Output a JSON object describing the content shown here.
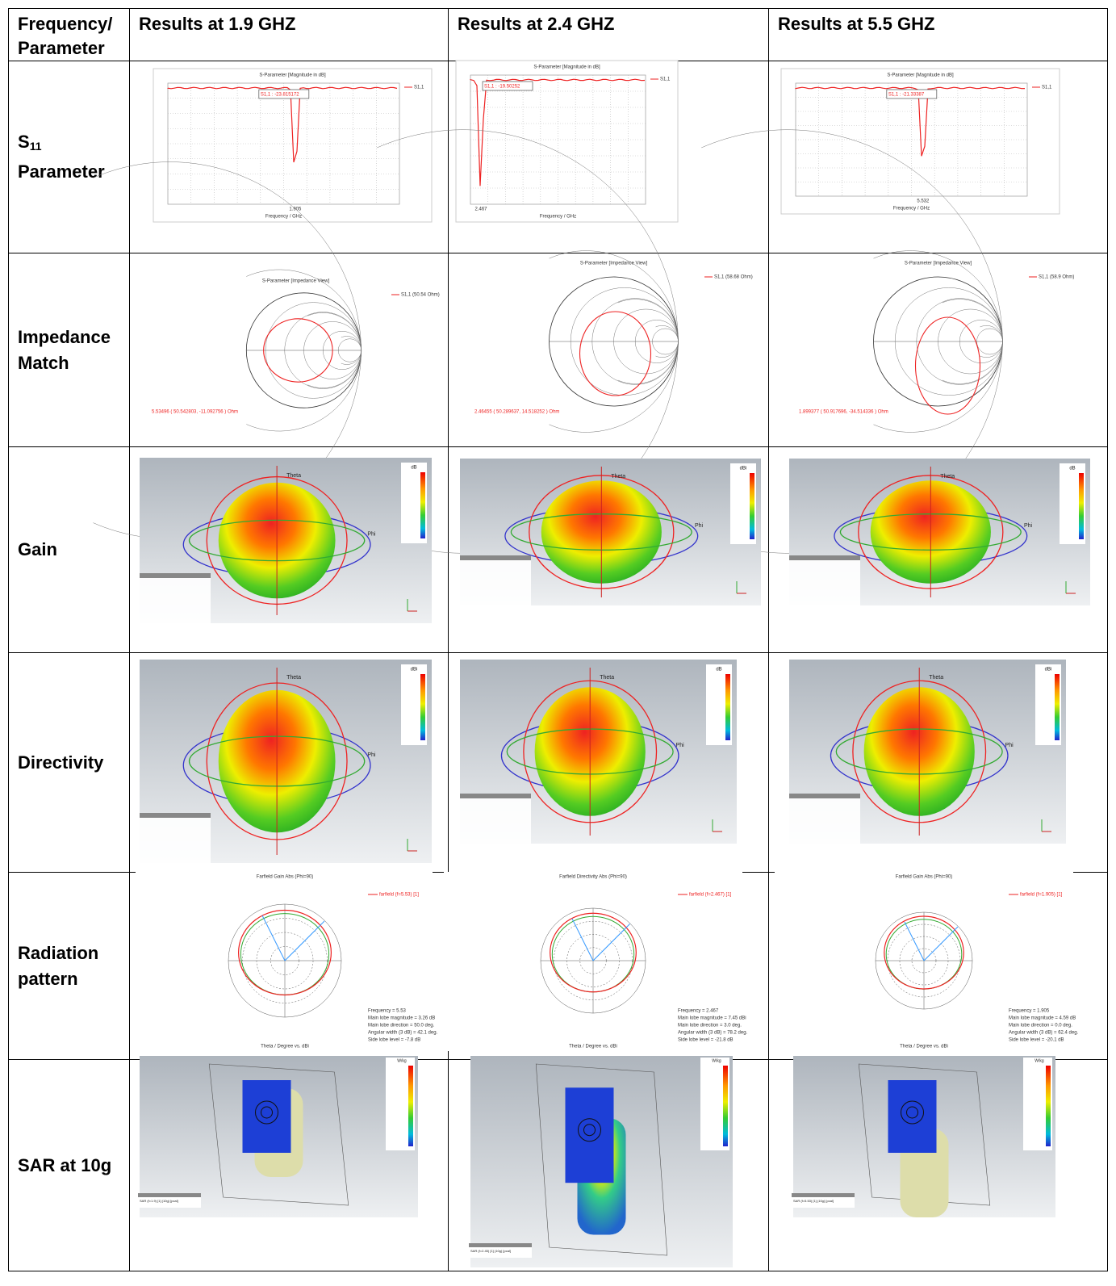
{
  "table": {
    "header": [
      "Frequency/ Parameter",
      "Results at 1.9 GHZ",
      "Results at 2.4 GHZ",
      "Results at 5.5 GHZ"
    ],
    "rows": [
      {
        "label": {
          "symbol": "S",
          "subscript": "11",
          "text": "Parameter"
        },
        "kind": "s11",
        "figures": [
          {
            "title": "S-Parameter [Magnitude in dB]",
            "marker": "S1,1 : -23.815172",
            "legend": "S1,1",
            "x_marker": "1.905",
            "x_label": "Frequency / GHz"
          },
          {
            "title": "S-Parameter [Magnitude in dB]",
            "marker": "S1,1 : -19.50252",
            "legend": "S1,1",
            "x_marker": "2.467",
            "x_label": "Frequency / GHz"
          },
          {
            "title": "S-Parameter [Magnitude in dB]",
            "marker": "S1,1 : -21.33387",
            "legend": "S1,1",
            "x_marker": "5.532",
            "x_label": "Frequency / GHz"
          }
        ]
      },
      {
        "label": {
          "text": "Impedance Match"
        },
        "kind": "smith",
        "figures": [
          {
            "title": "S-Parameter [Impedance View]",
            "legend": "S1,1 (50.54 Ohm)",
            "readout": "5.53496 ( 50.542803, -11.092756 ) Ohm"
          },
          {
            "title": "S-Parameter [Impedance View]",
            "legend": "S1,1 (58.68 Ohm)",
            "readout": "2.46455 ( 50.289637, 14.518252 ) Ohm"
          },
          {
            "title": "S-Parameter [Impedance View]",
            "legend": "S1,1 (58.9 Ohm)",
            "readout": "1.899377 ( 50.917696, -34.514336 ) Ohm"
          }
        ]
      },
      {
        "label": {
          "text": "Gain"
        },
        "kind": "pattern3d",
        "figures": [
          {
            "unit": "dB",
            "theta": "Theta",
            "phi": "Phi"
          },
          {
            "unit": "dBi",
            "theta": "Theta",
            "phi": "Phi"
          },
          {
            "unit": "dB",
            "theta": "Theta",
            "phi": "Phi"
          }
        ]
      },
      {
        "label": {
          "text": "Directivity"
        },
        "kind": "pattern3d",
        "figures": [
          {
            "unit": "dBi",
            "theta": "Theta",
            "phi": "Phi"
          },
          {
            "unit": "dB",
            "theta": "Theta",
            "phi": "Phi"
          },
          {
            "unit": "dBi",
            "theta": "Theta",
            "phi": "Phi"
          }
        ]
      },
      {
        "label": {
          "text": "Radiation pattern"
        },
        "kind": "polar",
        "figures": [
          {
            "title": "Farfield Gain Abs (Phi=90)",
            "legend": "farfield (f=5.53) [1]",
            "x_label": "Theta / Degree vs. dBi",
            "info": [
              "Frequency = 5.53",
              "Main lobe magnitude = 3.26 dB",
              "Main lobe direction = 50.0 deg.",
              "Angular width (3 dB) = 42.1 deg.",
              "Side lobe level = -7.8 dB"
            ]
          },
          {
            "title": "Farfield Directivity Abs (Phi=90)",
            "legend": "farfield (f=2.467) [1]",
            "x_label": "Theta / Degree vs. dBi",
            "info": [
              "Frequency = 2.467",
              "Main lobe magnitude = 7.45 dBi",
              "Main lobe direction = 3.0 deg.",
              "Angular width (3 dB) = 78.2 deg.",
              "Side lobe level = -21.8 dB"
            ]
          },
          {
            "title": "Farfield Gain Abs (Phi=90)",
            "legend": "farfield (f=1.905) [1]",
            "x_label": "Theta / Degree vs. dBi",
            "info": [
              "Frequency = 1.905",
              "Main lobe magnitude = 4.59 dB",
              "Main lobe direction = 0.0 deg.",
              "Angular width (3 dB) = 62.4 deg.",
              "Side lobe level = -20.1 dB"
            ]
          }
        ]
      },
      {
        "label": {
          "text": "SAR at 10g"
        },
        "kind": "sar",
        "figures": [
          {
            "unit": "W/kg",
            "caption": "SAR (f=1.9) [1] (10g) [pcal]"
          },
          {
            "unit": "W/kg",
            "caption": "SAR (f=2.45) [1] (10g) [pcal]"
          },
          {
            "unit": "W/kg",
            "caption": "SAR (f=5.53) [1] (10g) [pcal]"
          }
        ]
      }
    ]
  }
}
